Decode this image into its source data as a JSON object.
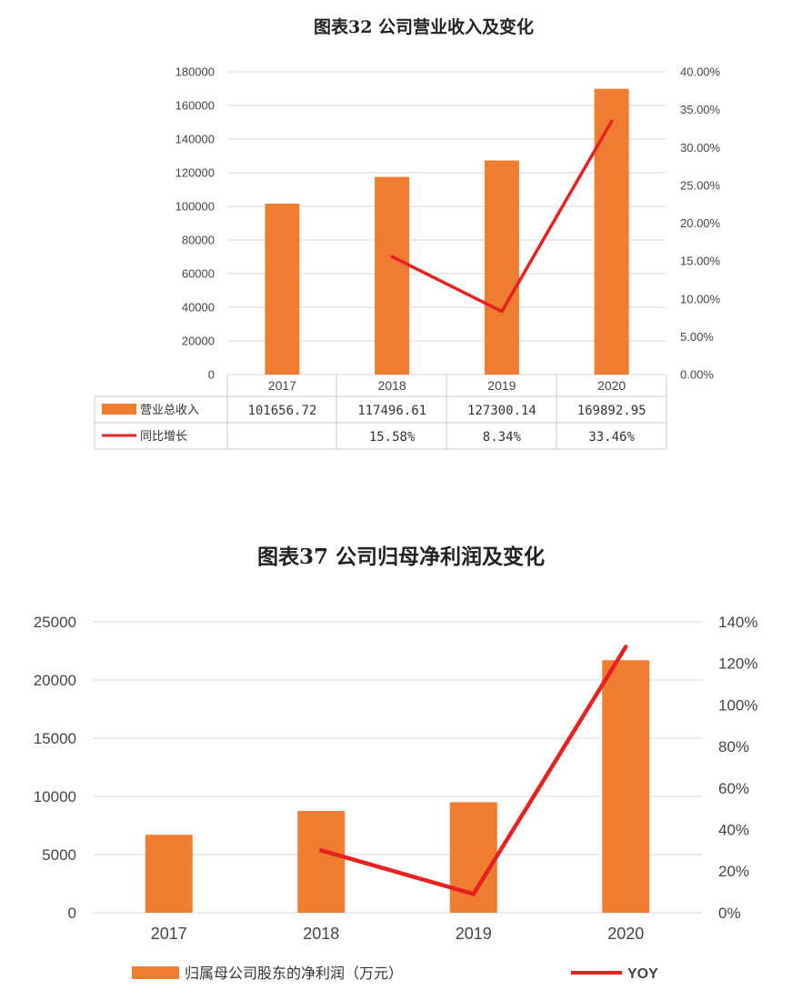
{
  "chart_data": [
    {
      "type": "bar",
      "title": "图表32 公司营业收入及变化",
      "categories": [
        "2017",
        "2018",
        "2019",
        "2020"
      ],
      "series": [
        {
          "name": "营业总收入",
          "type": "bar",
          "axis": "left",
          "color": "#ee7d31",
          "values": [
            101656.72,
            117496.61,
            127300.14,
            169892.95
          ],
          "labels": [
            "101656.72",
            "117496.61",
            "127300.14",
            "169892.95"
          ]
        },
        {
          "name": "同比增长",
          "type": "line",
          "axis": "right",
          "color": "#e8201f",
          "values": [
            null,
            15.58,
            8.34,
            33.46
          ],
          "labels": [
            "",
            "15.58%",
            "8.34%",
            "33.46%"
          ]
        }
      ],
      "y_left": {
        "min": 0,
        "max": 180000,
        "ticks": [
          "0",
          "20000",
          "40000",
          "60000",
          "80000",
          "100000",
          "120000",
          "140000",
          "160000",
          "180000"
        ]
      },
      "y_right": {
        "min": 0,
        "max": 40,
        "ticks": [
          "0.00%",
          "5.00%",
          "10.00%",
          "15.00%",
          "20.00%",
          "25.00%",
          "30.00%",
          "35.00%",
          "40.00%"
        ]
      },
      "grid": true,
      "legend": "data-table"
    },
    {
      "type": "bar",
      "title": "图表37 公司归母净利润及变化",
      "categories": [
        "2017",
        "2018",
        "2019",
        "2020"
      ],
      "series": [
        {
          "name": "归属母公司股东的净利润（万元）",
          "type": "bar",
          "axis": "left",
          "color": "#ee7d31",
          "values": [
            6700,
            8750,
            9500,
            21700
          ]
        },
        {
          "name": "YOY",
          "type": "line",
          "axis": "right",
          "color": "#e8201f",
          "values": [
            null,
            30,
            9,
            128
          ]
        }
      ],
      "y_left": {
        "min": 0,
        "max": 25000,
        "ticks": [
          "0",
          "5000",
          "10000",
          "15000",
          "20000",
          "25000"
        ]
      },
      "y_right": {
        "min": 0,
        "max": 140,
        "ticks": [
          "0%",
          "20%",
          "40%",
          "60%",
          "80%",
          "100%",
          "120%",
          "140%"
        ]
      },
      "grid": true,
      "legend": "bottom"
    }
  ]
}
